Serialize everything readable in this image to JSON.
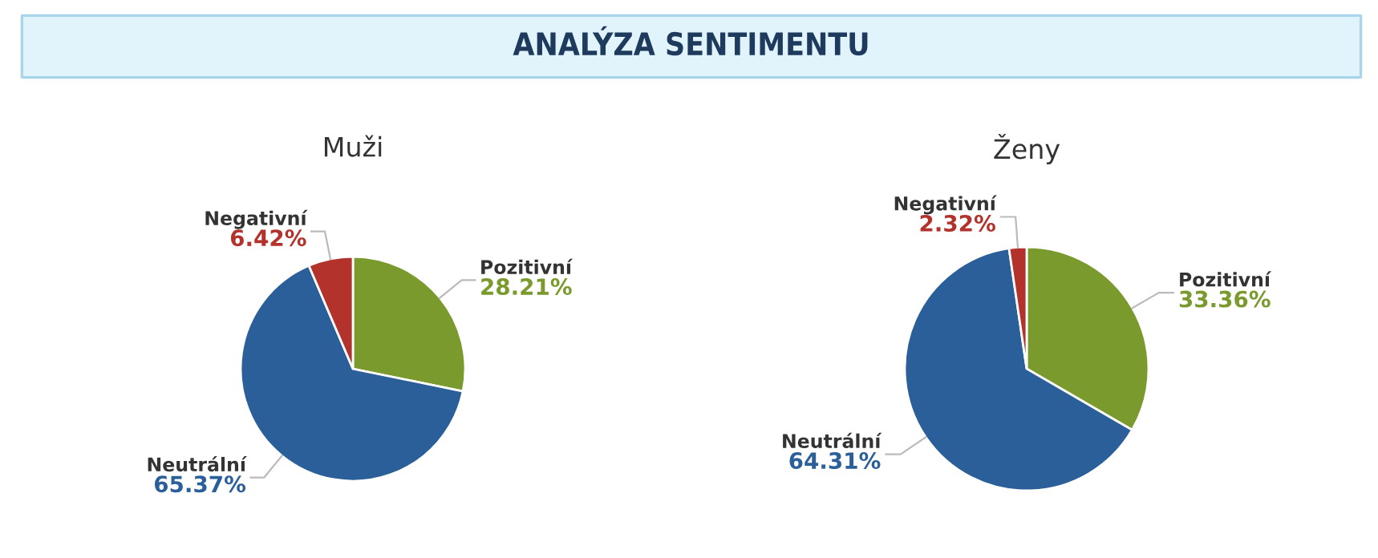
{
  "chart_data": [
    {
      "type": "other",
      "title": "ANALÝZA SENTIMENTU"
    },
    {
      "type": "pie",
      "title": "Muži",
      "categories": [
        "Pozitivní",
        "Neutrální",
        "Negativní"
      ],
      "values": [
        28.21,
        65.37,
        6.42
      ],
      "colors": [
        "#7a9a2e",
        "#2b5f99",
        "#b3322c"
      ],
      "value_labels": [
        "28.21%",
        "65.37%",
        "6.42%"
      ]
    },
    {
      "type": "pie",
      "title": "Ženy",
      "categories": [
        "Pozitivní",
        "Neutrální",
        "Negativní"
      ],
      "values": [
        33.36,
        64.31,
        2.32
      ],
      "colors": [
        "#7a9a2e",
        "#2b5f99",
        "#b3322c"
      ],
      "value_labels": [
        "33.36%",
        "64.31%",
        "2.32%"
      ]
    }
  ]
}
